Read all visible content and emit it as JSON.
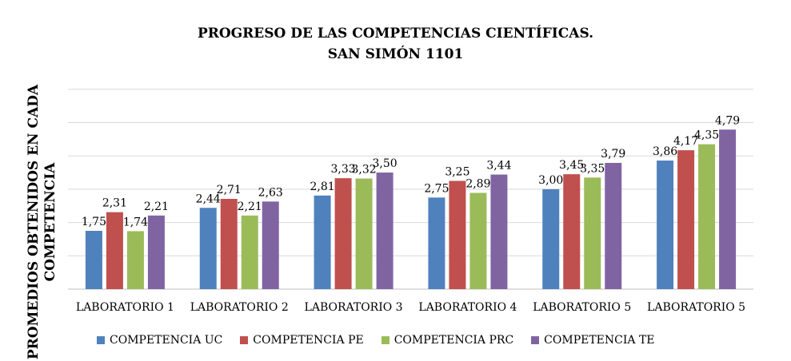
{
  "chart_data": {
    "type": "bar",
    "title": [
      "PROGRESO DE LAS COMPETENCIAS CIENTÍFICAS.",
      "SAN SIMÓN 1101"
    ],
    "ylabel": [
      "PROMEDIOS OBTENIDOS EN CADA",
      "COMPETENCIA"
    ],
    "xlabel": "",
    "categories": [
      "LABORATORIO 1",
      "LABORATORIO 2",
      "LABORATORIO 3",
      "LABORATORIO 4",
      "LABORATORIO 5",
      "LABORATORIO 5"
    ],
    "ylim": [
      0,
      6
    ],
    "grid": true,
    "legend_position": "bottom",
    "series": [
      {
        "name": "COMPETENCIA UC",
        "color": "#4f81bd",
        "values": [
          1.75,
          2.44,
          2.81,
          2.75,
          3.0,
          3.86
        ],
        "labels": [
          "1,75",
          "2,44",
          "2,81",
          "2,75",
          "3,00",
          "3,86"
        ]
      },
      {
        "name": "COMPETENCIA PE",
        "color": "#c0504d",
        "values": [
          2.31,
          2.71,
          3.33,
          3.25,
          3.45,
          4.17
        ],
        "labels": [
          "2,31",
          "2,71",
          "3,33",
          "3,25",
          "3,45",
          "4,17"
        ]
      },
      {
        "name": "COMPETENCIA PRC",
        "color": "#9bbb59",
        "values": [
          1.74,
          2.21,
          3.32,
          2.89,
          3.35,
          4.35
        ],
        "labels": [
          "1,74",
          "2,21",
          "3,32",
          "2,89",
          "3,35",
          "4,35"
        ]
      },
      {
        "name": "COMPETENCIA TE",
        "color": "#8064a2",
        "values": [
          2.21,
          2.63,
          3.5,
          3.44,
          3.79,
          4.79
        ],
        "labels": [
          "2,21",
          "2,63",
          "3,50",
          "3,44",
          "3,79",
          "4,79"
        ]
      }
    ]
  }
}
